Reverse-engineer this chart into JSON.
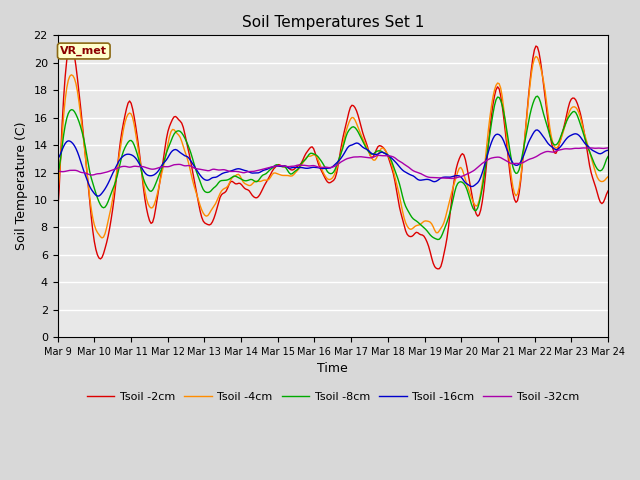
{
  "title": "Soil Temperatures Set 1",
  "xlabel": "Time",
  "ylabel": "Soil Temperature (C)",
  "ylim": [
    0,
    22
  ],
  "yticks": [
    0,
    2,
    4,
    6,
    8,
    10,
    12,
    14,
    16,
    18,
    20,
    22
  ],
  "xtick_labels": [
    "Mar 9",
    "Mar 10",
    "Mar 11",
    "Mar 12",
    "Mar 13",
    "Mar 14",
    "Mar 15",
    "Mar 16",
    "Mar 17",
    "Mar 18",
    "Mar 19",
    "Mar 20",
    "Mar 21",
    "Mar 22",
    "Mar 23",
    "Mar 24"
  ],
  "annotation_text": "VR_met",
  "annotation_color": "#8B0000",
  "annotation_bg": "#FFFFCC",
  "bg_color": "#D8D8D8",
  "plot_bg": "#E8E8E8",
  "grid_color": "#FFFFFF",
  "series": [
    {
      "label": "Tsoil -2cm",
      "color": "#DD0000",
      "lw": 1.0
    },
    {
      "label": "Tsoil -4cm",
      "color": "#FF8C00",
      "lw": 1.0
    },
    {
      "label": "Tsoil -8cm",
      "color": "#00AA00",
      "lw": 1.0
    },
    {
      "label": "Tsoil -16cm",
      "color": "#0000CC",
      "lw": 1.0
    },
    {
      "label": "Tsoil -32cm",
      "color": "#AA00AA",
      "lw": 1.0
    }
  ]
}
